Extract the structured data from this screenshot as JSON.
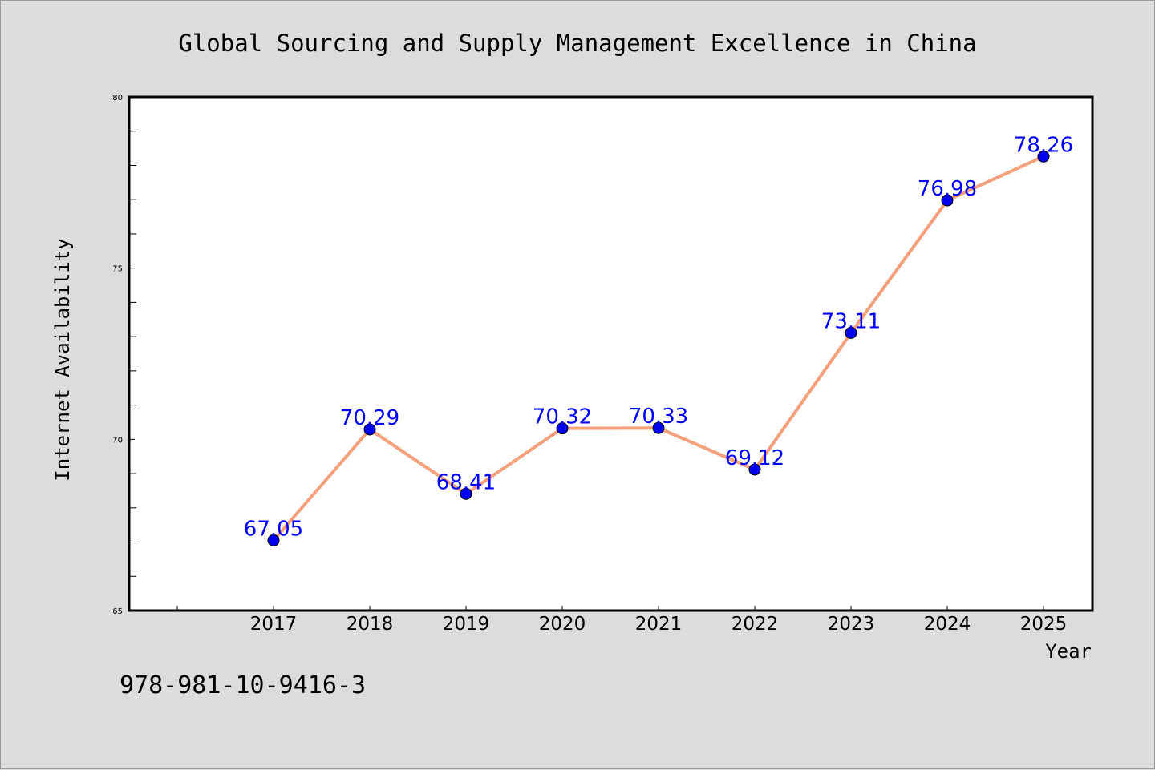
{
  "chart_data": {
    "type": "line",
    "title": "Global Sourcing and Supply Management Excellence in China",
    "xlabel": "Year",
    "ylabel": "Internet Availability",
    "x": [
      "2017",
      "2018",
      "2019",
      "2020",
      "2021",
      "2022",
      "2023",
      "2024",
      "2025"
    ],
    "series": [
      {
        "values": [
          67.05,
          70.29,
          68.41,
          70.32,
          70.33,
          69.12,
          73.11,
          76.98,
          78.26
        ],
        "data_labels": [
          "67.05",
          "70.29",
          "68.41",
          "70.32",
          "70.33",
          "69.12",
          "73.11",
          "76.98",
          "78.26"
        ],
        "line_color": "#f4a07a",
        "marker_color": "#0000ee"
      }
    ],
    "ylim": [
      65,
      80
    ],
    "y_ticks": [
      "65",
      "70",
      "75",
      "80"
    ],
    "grid": false,
    "legend": "none",
    "label_color": "#0000ff"
  },
  "footer_note": "978-981-10-9416-3"
}
